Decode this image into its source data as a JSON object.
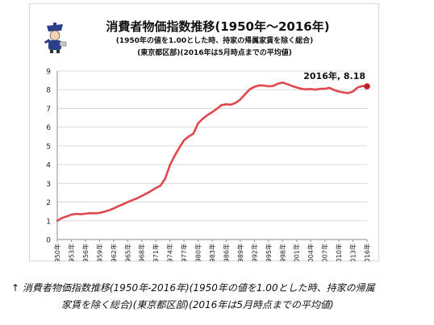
{
  "header": {
    "title": "消費者物価指数推移(1950年～2016年)",
    "subtitle": "(1950年の値を1.00とした時、持家の帰属家賃を除く総合)",
    "subtitle2": "(東京都区部)(2016年は5月時点までの平均値)"
  },
  "caption": {
    "line1": "↑ 消費者物価指数推移(1950年-2016年)(1950年の値を1.00とした時、持家の帰属",
    "line2": "家賃を除く総合)(東京都区部)(2016年は5月時点までの平均値)"
  },
  "colors": {
    "line": "#e0484d",
    "marker": "#c0202a",
    "grid": "#d9d9d9"
  },
  "chart_data": {
    "type": "line",
    "xlim": [
      1950,
      2016
    ],
    "ylim": [
      0,
      9
    ],
    "yticks": [
      "0",
      "1",
      "2",
      "3",
      "4",
      "5",
      "6",
      "7",
      "8",
      "9"
    ],
    "xtick_labels": [
      "1950年",
      "1953年",
      "1956年",
      "1959年",
      "1962年",
      "1965年",
      "1968年",
      "1971年",
      "1974年",
      "1977年",
      "1980年",
      "1983年",
      "1986年",
      "1989年",
      "1992年",
      "1995年",
      "1998年",
      "2001年",
      "2004年",
      "2007年",
      "2010年",
      "2013年",
      "2016年"
    ],
    "annotation": {
      "text": "2016年, 8.18",
      "x": 2016,
      "y": 8.18
    },
    "series": [
      {
        "x": [
          1950,
          1951,
          1952,
          1953,
          1954,
          1955,
          1956,
          1957,
          1958,
          1959,
          1960,
          1961,
          1962,
          1963,
          1964,
          1965,
          1966,
          1967,
          1968,
          1969,
          1970,
          1971,
          1972,
          1973,
          1974,
          1975,
          1976,
          1977,
          1978,
          1979,
          1980,
          1981,
          1982,
          1983,
          1984,
          1985,
          1986,
          1987,
          1988,
          1989,
          1990,
          1991,
          1992,
          1993,
          1994,
          1995,
          1996,
          1997,
          1998,
          1999,
          2000,
          2001,
          2002,
          2003,
          2004,
          2005,
          2006,
          2007,
          2008,
          2009,
          2010,
          2011,
          2012,
          2013,
          2014,
          2015,
          2016
        ],
        "y": [
          1.0,
          1.15,
          1.23,
          1.33,
          1.37,
          1.35,
          1.38,
          1.41,
          1.4,
          1.42,
          1.48,
          1.56,
          1.66,
          1.78,
          1.88,
          2.0,
          2.1,
          2.2,
          2.33,
          2.45,
          2.6,
          2.75,
          2.88,
          3.25,
          3.97,
          4.47,
          4.9,
          5.3,
          5.5,
          5.65,
          6.2,
          6.45,
          6.65,
          6.8,
          6.98,
          7.18,
          7.22,
          7.2,
          7.3,
          7.48,
          7.75,
          8.02,
          8.15,
          8.23,
          8.22,
          8.18,
          8.2,
          8.32,
          8.38,
          8.3,
          8.2,
          8.12,
          8.05,
          8.02,
          8.04,
          8.0,
          8.05,
          8.05,
          8.1,
          7.98,
          7.9,
          7.85,
          7.82,
          7.9,
          8.12,
          8.2,
          8.18
        ]
      }
    ]
  }
}
